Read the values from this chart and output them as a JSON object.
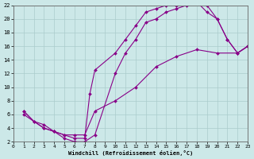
{
  "xlabel": "Windchill (Refroidissement éolien,°C)",
  "bg_color": "#cce8e8",
  "line_color": "#880088",
  "grid_color": "#aacccc",
  "xlim": [
    0,
    23
  ],
  "ylim": [
    2,
    22
  ],
  "yticks": [
    2,
    4,
    6,
    8,
    10,
    12,
    14,
    16,
    18,
    20,
    22
  ],
  "xticks": [
    0,
    1,
    2,
    3,
    4,
    5,
    6,
    7,
    8,
    9,
    10,
    11,
    12,
    13,
    14,
    15,
    16,
    17,
    18,
    19,
    20,
    21,
    22,
    23
  ],
  "series": [
    {
      "x": [
        1,
        2,
        3,
        4,
        5,
        6,
        7,
        8,
        10,
        11,
        12,
        13,
        14,
        15,
        16,
        17,
        18,
        19,
        20,
        21,
        22,
        23
      ],
      "y": [
        6.5,
        5,
        4,
        3.5,
        2.5,
        2,
        2,
        3,
        12,
        15,
        17,
        19.5,
        20,
        21,
        21.5,
        22,
        22.5,
        21,
        20,
        17,
        15,
        16
      ]
    },
    {
      "x": [
        1,
        2,
        3,
        4,
        5,
        6,
        7,
        7.5,
        8,
        10,
        11,
        12,
        13,
        14,
        15,
        16,
        17,
        18,
        19,
        20,
        21,
        22,
        23
      ],
      "y": [
        6.5,
        5,
        4.5,
        3.5,
        3,
        2.5,
        2.5,
        9,
        12.5,
        15,
        17,
        19,
        21,
        21.5,
        22,
        22,
        22.5,
        23,
        22,
        20,
        17,
        15,
        16
      ]
    },
    {
      "x": [
        1,
        3,
        4,
        5,
        6,
        7,
        8,
        10,
        12,
        14,
        16,
        18,
        20,
        22,
        23
      ],
      "y": [
        6,
        4,
        3.5,
        3,
        3,
        3,
        6.5,
        8,
        10,
        13,
        14.5,
        15.5,
        15,
        15,
        16
      ]
    }
  ]
}
